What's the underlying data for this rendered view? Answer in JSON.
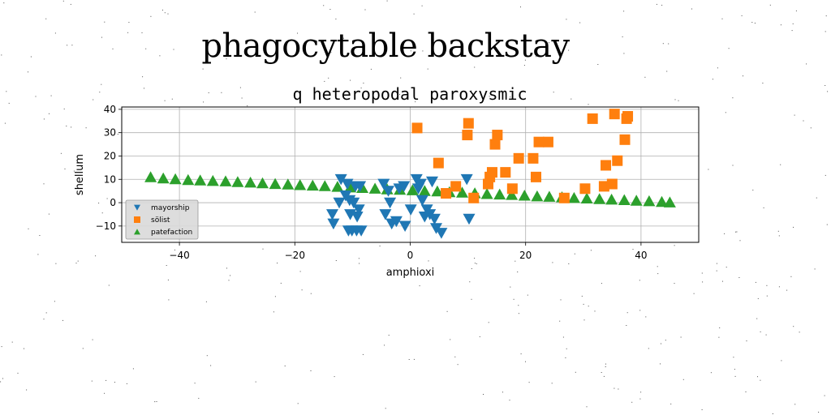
{
  "figure": {
    "suptitle": "phagocytable backstay"
  },
  "chart_data": {
    "type": "scatter",
    "title": "q heteropodal paroxysmic",
    "xlabel": "amphioxi",
    "ylabel": "shellum",
    "xlim": [
      -50,
      50
    ],
    "ylim": [
      -17,
      41
    ],
    "xticks": [
      -40,
      -20,
      0,
      20,
      40
    ],
    "yticks": [
      -10,
      0,
      10,
      20,
      30,
      40
    ],
    "xtick_labels": [
      "−40",
      "−20",
      "0",
      "20",
      "40"
    ],
    "ytick_labels": [
      "−10",
      "0",
      "10",
      "20",
      "30",
      "40"
    ],
    "grid": true,
    "legend": {
      "position": "lower-left"
    },
    "series": [
      {
        "name": "mayorship",
        "marker": "triangle-down",
        "color": "#1f77b4",
        "x": [
          -13.5,
          -13.3,
          -12.3,
          -12.0,
          -11.2,
          -10.9,
          -10.7,
          -10.5,
          -10.4,
          -10.1,
          -9.8,
          -9.5,
          -9.3,
          -9.2,
          -8.9,
          -8.7,
          -8.5,
          -4.6,
          -4.3,
          -3.8,
          -3.5,
          -3.2,
          -2.4,
          -1.9,
          -1.1,
          -0.9,
          0.1,
          1.1,
          1.4,
          1.8,
          2.1,
          2.5,
          2.9,
          3.4,
          3.8,
          4.2,
          4.5,
          5.4,
          9.8,
          10.2
        ],
        "y": [
          -5,
          -9,
          0,
          10,
          3,
          8,
          -12,
          1,
          -5,
          -12,
          0,
          7,
          -12,
          -6,
          -3,
          7,
          -12,
          8,
          -5,
          5,
          0,
          -9,
          -8,
          6,
          7,
          -10,
          -3,
          10,
          6,
          8,
          1,
          -6,
          -3,
          -5,
          9,
          -7,
          -11,
          -13,
          10,
          -7
        ]
      },
      {
        "name": "sölist",
        "marker": "square",
        "color": "#ff7f0e",
        "x": [
          1.2,
          4.9,
          6.2,
          7.9,
          9.9,
          10.1,
          11.0,
          13.5,
          13.8,
          14.2,
          14.7,
          15.1,
          16.5,
          17.7,
          18.8,
          21.3,
          21.8,
          22.3,
          23.9,
          26.7,
          30.3,
          31.6,
          33.6,
          33.9,
          35.0,
          35.4,
          35.9,
          37.2,
          37.5,
          37.7
        ],
        "y": [
          32,
          17,
          4,
          7,
          29,
          34,
          2,
          8,
          11,
          13,
          25,
          29,
          13,
          6,
          19,
          19,
          11,
          26,
          26,
          2,
          6,
          36,
          7,
          16,
          8,
          38,
          18,
          27,
          36,
          37
        ]
      },
      {
        "name": "patefaction",
        "marker": "triangle-up",
        "color": "#2ca02c",
        "x": [
          -45.0,
          -42.8,
          -40.7,
          -38.5,
          -36.4,
          -34.2,
          -32.0,
          -29.9,
          -27.7,
          -25.6,
          -23.4,
          -21.2,
          -19.1,
          -16.9,
          -14.8,
          -12.6,
          -10.4,
          -8.3,
          -6.1,
          -4.0,
          -1.8,
          0.4,
          2.5,
          4.7,
          6.8,
          9.0,
          11.2,
          13.3,
          15.5,
          17.6,
          19.8,
          22.0,
          24.1,
          26.3,
          28.4,
          30.6,
          32.8,
          34.9,
          37.1,
          39.2,
          41.4,
          43.6,
          45.0
        ],
        "y": [
          11.0,
          10.5,
          10.1,
          9.8,
          9.6,
          9.4,
          9.2,
          8.9,
          8.7,
          8.4,
          8.1,
          7.9,
          7.6,
          7.4,
          7.2,
          6.9,
          6.6,
          6.4,
          6.1,
          5.8,
          5.6,
          5.4,
          5.1,
          4.9,
          4.6,
          4.4,
          4.1,
          3.8,
          3.6,
          3.4,
          3.1,
          2.8,
          2.6,
          2.4,
          2.1,
          1.9,
          1.6,
          1.4,
          1.2,
          0.9,
          0.7,
          0.4,
          0.2
        ]
      }
    ]
  }
}
